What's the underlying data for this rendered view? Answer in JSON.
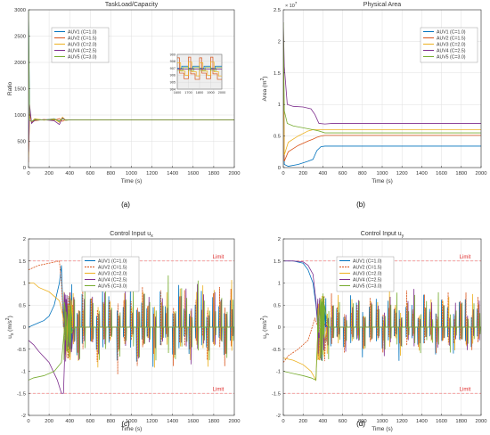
{
  "chart_data": [
    {
      "panel_label": "(a)",
      "type": "line",
      "title": "TaskLoad/Capacity",
      "xlabel": "Time (s)",
      "ylabel": "Ratio",
      "xlim": [
        0,
        2000
      ],
      "ylim": [
        0,
        3000
      ],
      "xticks": [
        0,
        200,
        400,
        600,
        800,
        1000,
        1200,
        1400,
        1600,
        1800,
        2000
      ],
      "yticks": [
        0,
        500,
        1000,
        1500,
        2000,
        2500,
        3000
      ],
      "grid": true,
      "legend_position": "top-left",
      "series": [
        {
          "name": "AUV1 (C=1.0)",
          "color": "#0072BD",
          "x": [
            0,
            10,
            30,
            60,
            150,
            250,
            300,
            330,
            360,
            400,
            500,
            2000
          ],
          "y": [
            3000,
            1100,
            850,
            920,
            905,
            930,
            880,
            950,
            900,
            908,
            907,
            907
          ]
        },
        {
          "name": "AUV2 (C=1.5)",
          "color": "#D95319",
          "x": [
            0,
            10,
            30,
            60,
            150,
            250,
            300,
            330,
            360,
            400,
            500,
            2000
          ],
          "y": [
            100,
            1050,
            860,
            890,
            915,
            900,
            930,
            880,
            910,
            905,
            906,
            906
          ]
        },
        {
          "name": "AUV3 (C=2.0)",
          "color": "#EDB120",
          "x": [
            0,
            10,
            30,
            60,
            150,
            250,
            300,
            330,
            360,
            400,
            500,
            2000
          ],
          "y": [
            200,
            980,
            870,
            930,
            900,
            925,
            860,
            960,
            900,
            907,
            907,
            907
          ]
        },
        {
          "name": "AUV4 (C=2.5)",
          "color": "#7E2F8E",
          "x": [
            0,
            10,
            30,
            60,
            150,
            250,
            300,
            330,
            360,
            400,
            500,
            2000
          ],
          "y": [
            300,
            1200,
            840,
            900,
            910,
            890,
            820,
            940,
            905,
            906,
            907,
            907
          ]
        },
        {
          "name": "AUV5 (C=3.0)",
          "color": "#77AC30",
          "x": [
            0,
            10,
            30,
            60,
            150,
            250,
            300,
            330,
            360,
            400,
            500,
            2000
          ],
          "y": [
            3000,
            900,
            880,
            910,
            905,
            915,
            890,
            925,
            905,
            907,
            907,
            907
          ]
        }
      ],
      "inset": {
        "xlim": [
          1600,
          2000
        ],
        "ylim": [
          904,
          909
        ],
        "xticks": [
          1600,
          1700,
          1800,
          1900,
          2000
        ],
        "yticks": [
          904,
          905,
          906,
          907,
          908,
          909
        ],
        "series": [
          {
            "name": "AUV1 (C=1.0)",
            "color": "#0072BD",
            "x": [
              1600,
              1640,
              1640,
              1700,
              1700,
              1740,
              1740,
              1800,
              1800,
              1840,
              1840,
              1900,
              1900,
              1940,
              1940,
              2000
            ],
            "y": [
              907.0,
              907.0,
              907.3,
              907.3,
              907.0,
              907.0,
              907.3,
              907.3,
              907.0,
              907.0,
              907.3,
              907.3,
              907.0,
              907.0,
              907.3,
              907.3
            ]
          },
          {
            "name": "AUV2 (C=1.5)",
            "color": "#D95319",
            "x": [
              1600,
              1620,
              1620,
              1660,
              1660,
              1700,
              1700,
              1720,
              1720,
              1760,
              1760,
              1800,
              1800,
              1820,
              1820,
              1860,
              1860,
              1900,
              1900,
              1920,
              1920,
              1960,
              1960,
              2000
            ],
            "y": [
              908.5,
              908.5,
              906.3,
              906.3,
              905.5,
              905.5,
              908.6,
              908.6,
              906.2,
              906.2,
              905.4,
              905.4,
              908.5,
              908.5,
              906.3,
              906.3,
              905.5,
              905.5,
              908.6,
              908.6,
              906.2,
              906.2,
              905.4,
              905.4
            ]
          },
          {
            "name": "AUV3 (C=2.0)",
            "color": "#EDB120",
            "x": [
              1600,
              1630,
              1630,
              1670,
              1670,
              1700,
              1700,
              1730,
              1730,
              1770,
              1770,
              1800,
              1800,
              1830,
              1830,
              1870,
              1870,
              1900,
              1900,
              1930,
              1930,
              1970,
              1970,
              2000
            ],
            "y": [
              907.8,
              907.8,
              906.6,
              906.6,
              906.0,
              906.0,
              907.9,
              907.9,
              906.5,
              906.5,
              905.9,
              905.9,
              907.8,
              907.8,
              906.6,
              906.6,
              906.0,
              906.0,
              907.9,
              907.9,
              906.5,
              906.5,
              905.9,
              905.9
            ]
          },
          {
            "name": "AUV4 (C=2.5)",
            "color": "#7E2F8E",
            "x": [
              1600,
              2000
            ],
            "y": [
              906.9,
              906.9
            ]
          },
          {
            "name": "AUV5 (C=3.0)",
            "color": "#77AC30",
            "x": [
              1600,
              1650,
              1650,
              1700,
              1700,
              1750,
              1750,
              1800,
              1800,
              1850,
              1850,
              1900,
              1900,
              1950,
              1950,
              2000
            ],
            "y": [
              906.7,
              906.7,
              907.1,
              907.1,
              906.7,
              906.7,
              907.1,
              907.1,
              906.7,
              906.7,
              907.1,
              907.1,
              906.7,
              906.7,
              907.1,
              907.1
            ]
          }
        ]
      }
    },
    {
      "panel_label": "(b)",
      "type": "line",
      "title": "Physical Area",
      "xlabel": "Time (s)",
      "ylabel": "Area (m",
      "ylabel_sup": "2",
      "ylabel_tail": ")",
      "exponent_label": "× 10",
      "exponent_sup": "7",
      "xlim": [
        0,
        2000
      ],
      "ylim": [
        0,
        2.5
      ],
      "xticks": [
        0,
        200,
        400,
        600,
        800,
        1000,
        1200,
        1400,
        1600,
        1800,
        2000
      ],
      "yticks": [
        0,
        0.5,
        1,
        1.5,
        2,
        2.5
      ],
      "grid": true,
      "legend_position": "top-right",
      "series": [
        {
          "name": "AUV1 (C=1.0)",
          "color": "#0072BD",
          "x": [
            0,
            10,
            50,
            150,
            250,
            300,
            340,
            380,
            420,
            500,
            2000
          ],
          "y": [
            2.3,
            0.05,
            0.02,
            0.05,
            0.1,
            0.13,
            0.27,
            0.33,
            0.34,
            0.34,
            0.34
          ]
        },
        {
          "name": "AUV2 (C=1.5)",
          "color": "#D95319",
          "x": [
            0,
            10,
            50,
            150,
            250,
            300,
            340,
            380,
            420,
            500,
            2000
          ],
          "y": [
            2.3,
            0.1,
            0.25,
            0.35,
            0.42,
            0.45,
            0.48,
            0.5,
            0.51,
            0.51,
            0.51
          ]
        },
        {
          "name": "AUV3 (C=2.0)",
          "color": "#EDB120",
          "x": [
            0,
            10,
            50,
            150,
            250,
            300,
            340,
            380,
            420,
            500,
            2000
          ],
          "y": [
            2.3,
            0.2,
            0.4,
            0.5,
            0.58,
            0.6,
            0.6,
            0.6,
            0.6,
            0.6,
            0.6
          ]
        },
        {
          "name": "AUV4 (C=2.5)",
          "color": "#7E2F8E",
          "x": [
            0,
            10,
            40,
            100,
            200,
            280,
            320,
            360,
            420,
            500,
            2000
          ],
          "y": [
            2.3,
            1.6,
            1.0,
            0.97,
            0.96,
            0.93,
            0.84,
            0.7,
            0.69,
            0.7,
            0.7
          ]
        },
        {
          "name": "AUV5 (C=3.0)",
          "color": "#77AC30",
          "x": [
            0,
            10,
            40,
            100,
            200,
            300,
            360,
            420,
            500,
            2000
          ],
          "y": [
            2.3,
            0.9,
            0.7,
            0.66,
            0.63,
            0.6,
            0.58,
            0.55,
            0.55,
            0.55
          ]
        }
      ]
    },
    {
      "panel_label": "(c)",
      "type": "line",
      "title": "Control Input u",
      "title_sub": "x",
      "xlabel": "Time (s)",
      "ylabel": "u",
      "ylabel_sub": "x",
      "ylabel_tail": " (m/s",
      "ylabel_sup": "2",
      "ylabel_close": ")",
      "xlim": [
        0,
        2000
      ],
      "ylim": [
        -2,
        2
      ],
      "xticks": [
        0,
        200,
        400,
        600,
        800,
        1000,
        1200,
        1400,
        1600,
        1800,
        2000
      ],
      "yticks": [
        -2,
        -1.5,
        -1,
        -0.5,
        0,
        0.5,
        1,
        1.5,
        2
      ],
      "grid": true,
      "legend_position": "top-center",
      "limit_lines": [
        1.5,
        -1.5
      ],
      "limit_label": "Limit",
      "spike_times": [
        420,
        470,
        520,
        600,
        660,
        720,
        780,
        860,
        920,
        990,
        1050,
        1100,
        1150,
        1210,
        1280,
        1330,
        1400,
        1460,
        1510,
        1560,
        1620,
        1680,
        1730,
        1790,
        1850,
        1900,
        1960
      ],
      "spike_amplitudes": [
        1.2,
        -0.9,
        1.0,
        0.8,
        -0.7,
        1.1,
        0.9,
        -0.8,
        0.6,
        1.0,
        -1.1,
        0.8,
        0.7,
        -0.9,
        1.0,
        0.6,
        -0.8,
        1.1,
        0.5,
        -1.0,
        0.8,
        0.9,
        -0.7,
        1.0,
        0.6,
        -0.9,
        0.8
      ],
      "series": [
        {
          "name": "AUV1 (C=1.0)",
          "color": "#0072BD",
          "x": [
            0,
            50,
            100,
            150,
            200,
            250,
            300,
            320,
            340
          ],
          "y": [
            0,
            0.05,
            0.1,
            0.15,
            0.25,
            0.5,
            1.0,
            1.4,
            0
          ]
        },
        {
          "name": "AUV2 (C=1.5)",
          "color": "#D95319",
          "dash": true,
          "x": [
            0,
            50,
            100,
            200,
            300,
            320,
            340
          ],
          "y": [
            1.3,
            1.35,
            1.4,
            1.45,
            1.5,
            1.0,
            0
          ]
        },
        {
          "name": "AUV3 (C=2.0)",
          "color": "#EDB120",
          "x": [
            0,
            50,
            100,
            200,
            300,
            330,
            350
          ],
          "y": [
            1.0,
            1.0,
            0.9,
            0.8,
            0.6,
            0.3,
            0
          ]
        },
        {
          "name": "AUV4 (C=2.5)",
          "color": "#7E2F8E",
          "x": [
            0,
            50,
            100,
            200,
            280,
            320,
            340,
            360
          ],
          "y": [
            -0.3,
            -0.4,
            -0.55,
            -0.8,
            -1.2,
            -1.5,
            -1.5,
            0
          ]
        },
        {
          "name": "AUV5 (C=3.0)",
          "color": "#77AC30",
          "x": [
            0,
            50,
            150,
            250,
            320,
            350
          ],
          "y": [
            -1.2,
            -1.15,
            -1.1,
            -1.0,
            -0.8,
            0
          ]
        }
      ]
    },
    {
      "panel_label": "(d)",
      "type": "line",
      "title": "Control Input u",
      "title_sub": "y",
      "xlabel": "Time (s)",
      "ylabel": "u",
      "ylabel_sub": "y",
      "ylabel_tail": " (m/s",
      "ylabel_sup": "2",
      "ylabel_close": ")",
      "xlim": [
        0,
        2000
      ],
      "ylim": [
        -2,
        2
      ],
      "xticks": [
        0,
        200,
        400,
        600,
        800,
        1000,
        1200,
        1400,
        1600,
        1800,
        2000
      ],
      "yticks": [
        -2,
        -1.5,
        -1,
        -0.5,
        0,
        0.5,
        1,
        1.5,
        2
      ],
      "grid": true,
      "legend_position": "top-center",
      "limit_lines": [
        1.5,
        -1.5
      ],
      "limit_label": "Limit",
      "spike_times": [
        430,
        480,
        540,
        610,
        680,
        740,
        800,
        870,
        940,
        1000,
        1060,
        1120,
        1170,
        1240,
        1300,
        1360,
        1420,
        1480,
        1540,
        1600,
        1660,
        1720,
        1780,
        1840,
        1900,
        1960
      ],
      "spike_amplitudes": [
        0.8,
        -0.6,
        0.7,
        -0.5,
        0.9,
        0.6,
        -0.7,
        0.5,
        0.8,
        -0.6,
        0.7,
        0.5,
        -0.8,
        0.6,
        0.7,
        -0.5,
        0.9,
        0.6,
        -0.7,
        0.8,
        0.5,
        -0.6,
        0.7,
        0.9,
        -0.5,
        0.6
      ],
      "series": [
        {
          "name": "AUV1 (C=1.0)",
          "color": "#0072BD",
          "x": [
            0,
            100,
            200,
            250,
            300,
            330,
            350
          ],
          "y": [
            1.5,
            1.5,
            1.45,
            1.3,
            1.0,
            0.5,
            0
          ]
        },
        {
          "name": "AUV2 (C=1.5)",
          "color": "#D95319",
          "dash": true,
          "x": [
            0,
            50,
            150,
            250,
            320,
            350
          ],
          "y": [
            -0.8,
            -0.65,
            -0.5,
            -0.3,
            0.2,
            0
          ]
        },
        {
          "name": "AUV3 (C=2.0)",
          "color": "#EDB120",
          "x": [
            0,
            100,
            200,
            280,
            330,
            350
          ],
          "y": [
            -0.7,
            -0.75,
            -0.85,
            -1.0,
            -1.2,
            0
          ]
        },
        {
          "name": "AUV4 (C=2.5)",
          "color": "#7E2F8E",
          "x": [
            0,
            100,
            200,
            250,
            300,
            330,
            350
          ],
          "y": [
            1.5,
            1.5,
            1.48,
            1.4,
            1.2,
            0.6,
            0
          ]
        },
        {
          "name": "AUV5 (C=3.0)",
          "color": "#77AC30",
          "x": [
            0,
            100,
            200,
            280,
            330,
            350
          ],
          "y": [
            -1.0,
            -1.05,
            -1.1,
            -1.15,
            -1.2,
            0
          ]
        }
      ]
    }
  ]
}
